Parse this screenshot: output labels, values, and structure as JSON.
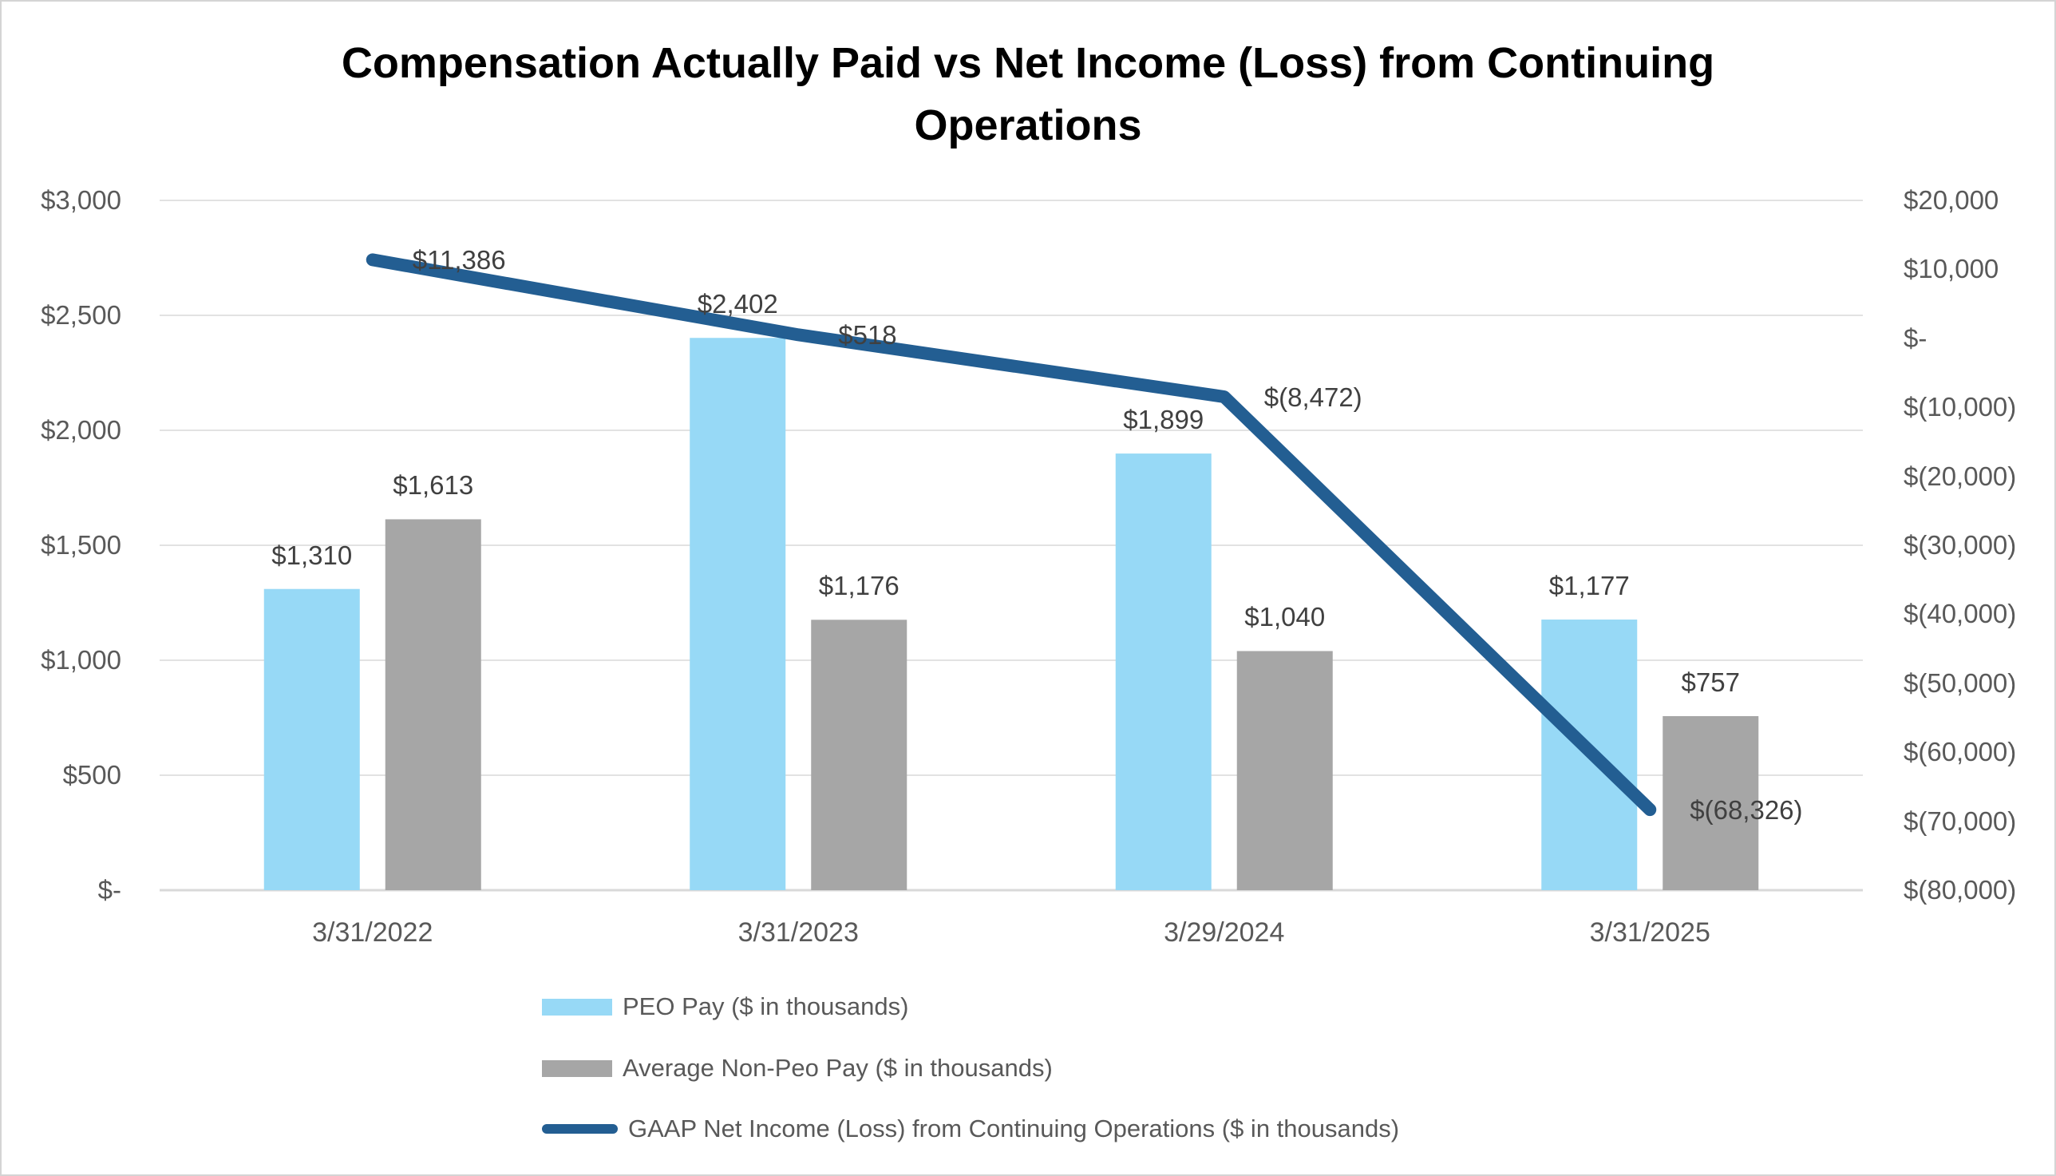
{
  "title": {
    "full": "Compensation Actually Paid vs Net Income (Loss) from Continuing Operations",
    "line1": "Compensation Actually Paid vs Net Income (Loss) from Continuing",
    "line2": "Operations"
  },
  "colors": {
    "peo_bar": "#97D9F6",
    "non_peo_bar": "#A6A6A6",
    "gaap_line": "#235E92",
    "gridline": "#D9D9D9",
    "axis_text": "#595959",
    "data_label_text": "#404040",
    "title_text": "#000000",
    "background": "#FFFFFF"
  },
  "chart_data": {
    "type": "combo",
    "title": "Compensation Actually Paid vs Net Income (Loss) from Continuing Operations",
    "categories": [
      "3/31/2022",
      "3/31/2023",
      "3/29/2024",
      "3/31/2025"
    ],
    "series": [
      {
        "name": "PEO Pay ($ in thousands)",
        "chart_type": "bar",
        "axis": "left",
        "color": "#97D9F6",
        "values": [
          1310,
          2402,
          1899,
          1177
        ],
        "data_labels": [
          "$1,310",
          "$2,402",
          "$1,899",
          "$1,177"
        ]
      },
      {
        "name": "Average Non-Peo Pay ($ in thousands)",
        "chart_type": "bar",
        "axis": "left",
        "color": "#A6A6A6",
        "values": [
          1613,
          1176,
          1040,
          757
        ],
        "data_labels": [
          "$1,613",
          "$1,176",
          "$1,040",
          "$757"
        ]
      },
      {
        "name": "GAAP Net Income (Loss) from Continuing Operations ($ in thousands)",
        "chart_type": "line",
        "axis": "right",
        "color": "#235E92",
        "values": [
          11386,
          518,
          -8472,
          -68326
        ],
        "data_labels": [
          "$11,386",
          "$518",
          "$(8,472)",
          "$(68,326)"
        ]
      }
    ],
    "left_axis": {
      "min": 0,
      "max": 3000,
      "step": 500,
      "tick_labels": [
        "$3,000",
        "$2,500",
        "$2,000",
        "$1,500",
        "$1,000",
        "$500",
        "$-"
      ]
    },
    "right_axis": {
      "min": -80000,
      "max": 20000,
      "step": 10000,
      "tick_labels": [
        "$20,000",
        "$10,000",
        "$-",
        "$(10,000)",
        "$(20,000)",
        "$(30,000)",
        "$(40,000)",
        "$(50,000)",
        "$(60,000)",
        "$(70,000)",
        "$(80,000)"
      ]
    },
    "grid": true,
    "legend_position": "bottom-left"
  },
  "legend": {
    "items": [
      {
        "label": "PEO Pay ($ in thousands)",
        "swatch": "rect",
        "color": "#97D9F6"
      },
      {
        "label": "Average Non-Peo Pay ($ in thousands)",
        "swatch": "rect",
        "color": "#A6A6A6"
      },
      {
        "label": "GAAP Net Income (Loss) from Continuing Operations ($ in thousands)",
        "swatch": "line",
        "color": "#235E92"
      }
    ]
  }
}
